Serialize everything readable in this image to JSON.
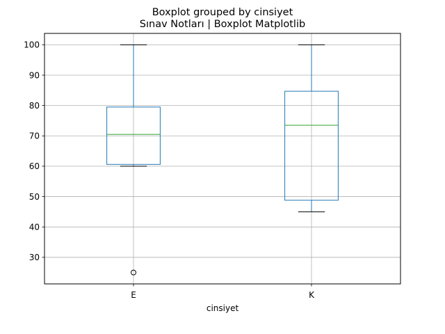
{
  "chart_data": {
    "type": "boxplot",
    "title": "Boxplot grouped by cinsiyet",
    "subtitle": "Sınav Notları | Boxplot Matplotlib",
    "xlabel": "cinsiyet",
    "ylabel": "",
    "categories": [
      "E",
      "K"
    ],
    "boxes": [
      {
        "category": "E",
        "whisker_low": 60,
        "q1": 60.6,
        "median": 70.5,
        "q3": 79.5,
        "whisker_high": 100,
        "outliers": [
          25
        ]
      },
      {
        "category": "K",
        "whisker_low": 45,
        "q1": 48.8,
        "median": 73.5,
        "q3": 84.7,
        "whisker_high": 100,
        "outliers": []
      }
    ],
    "yticks": [
      30,
      40,
      50,
      60,
      70,
      80,
      90,
      100
    ],
    "ylim": [
      21.25,
      103.75
    ],
    "grid": true,
    "colors": {
      "box": "#1f77b4",
      "median": "#2ca02c",
      "flier": "#000000",
      "grid": "#b0b0b0"
    }
  }
}
